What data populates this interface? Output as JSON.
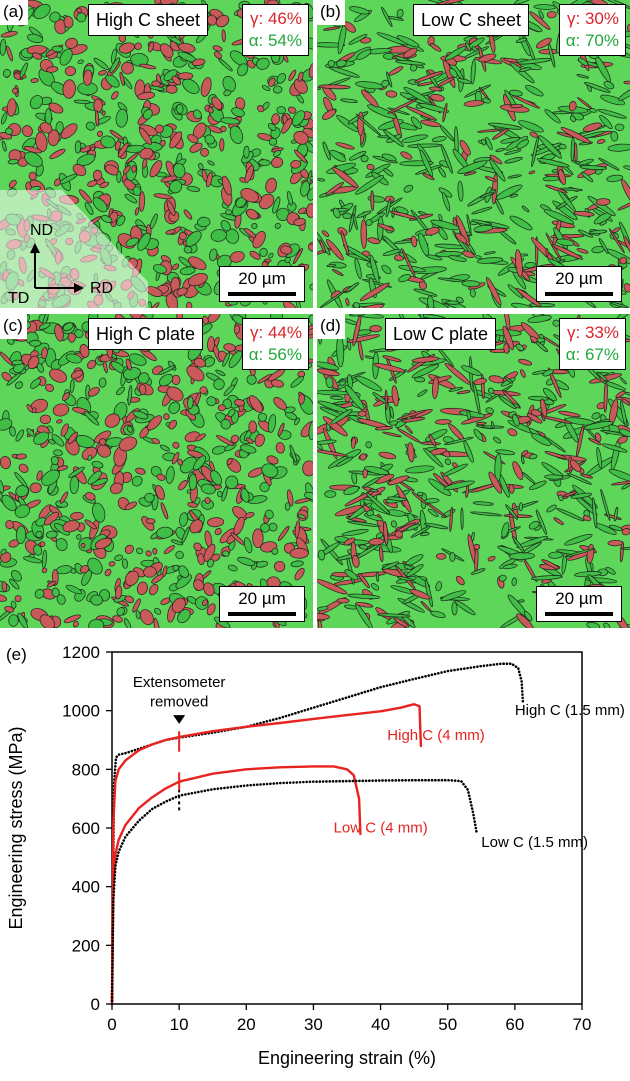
{
  "panels": [
    {
      "letter": "(a)",
      "sample": "High C sheet",
      "gamma": "γ: 46%",
      "alpha": "α: 54%",
      "scale": "20 µm",
      "gamma_frac": 0.46
    },
    {
      "letter": "(b)",
      "sample": "Low C sheet",
      "gamma": "γ: 30%",
      "alpha": "α: 70%",
      "scale": "20 µm",
      "gamma_frac": 0.3
    },
    {
      "letter": "(c)",
      "sample": "High C plate",
      "gamma": "γ: 44%",
      "alpha": "α: 56%",
      "scale": "20 µm",
      "gamma_frac": 0.44
    },
    {
      "letter": "(d)",
      "sample": "Low C plate",
      "gamma": "γ: 33%",
      "alpha": "α: 67%",
      "scale": "20 µm",
      "gamma_frac": 0.33
    }
  ],
  "axes_overlay": {
    "nd": "ND",
    "td": "TD",
    "rd": "RD"
  },
  "colors": {
    "austenite": "#d9262e",
    "ferrite": "#22a83c",
    "green_phase_fill": "#5ed65a",
    "red_phase_fill": "#c95a5a"
  },
  "chart_data": {
    "type": "line",
    "panel_letter": "(e)",
    "xlabel": "Engineering strain (%)",
    "ylabel": "Engineering stress (MPa)",
    "xlim": [
      0,
      70
    ],
    "ylim": [
      0,
      1200
    ],
    "xticks": [
      0,
      10,
      20,
      30,
      40,
      50,
      60,
      70
    ],
    "yticks": [
      0,
      200,
      400,
      600,
      800,
      1000,
      1200
    ],
    "annotation": {
      "text_line1": "Extensometer",
      "text_line2": "removed",
      "at_strain": 10
    },
    "series": [
      {
        "name": "High C (1.5 mm)",
        "color": "#000000",
        "style": "dotted",
        "x": [
          0,
          0.3,
          0.6,
          1.0,
          2,
          4,
          6,
          8,
          10,
          15,
          20,
          25,
          30,
          35,
          40,
          45,
          50,
          55,
          58,
          59.5,
          60.5,
          61.0,
          61.2
        ],
        "y": [
          0,
          750,
          840,
          850,
          855,
          870,
          885,
          900,
          908,
          925,
          945,
          975,
          1010,
          1045,
          1080,
          1108,
          1135,
          1152,
          1160,
          1160,
          1145,
          1100,
          1030
        ]
      },
      {
        "name": "High C (4 mm)",
        "color": "#e8231f",
        "style": "solid",
        "x": [
          0,
          0.2,
          0.5,
          1.0,
          2,
          4,
          6,
          8,
          10,
          15,
          20,
          25,
          30,
          35,
          40,
          43,
          45,
          45.8,
          46.0
        ],
        "y": [
          0,
          620,
          760,
          800,
          830,
          865,
          885,
          900,
          910,
          930,
          945,
          958,
          972,
          985,
          998,
          1010,
          1022,
          1015,
          880
        ]
      },
      {
        "name": "Low C (4 mm)",
        "color": "#e8231f",
        "style": "solid",
        "x": [
          0,
          0.2,
          0.5,
          1.0,
          2,
          4,
          6,
          8,
          10,
          15,
          20,
          25,
          30,
          33,
          35,
          36,
          36.8,
          37.0
        ],
        "y": [
          0,
          400,
          510,
          560,
          610,
          668,
          705,
          735,
          758,
          785,
          800,
          807,
          810,
          810,
          800,
          780,
          700,
          580
        ]
      },
      {
        "name": "Low C (1.5 mm)",
        "color": "#000000",
        "style": "dotted",
        "x": [
          0,
          0.2,
          0.5,
          1.0,
          2,
          4,
          6,
          8,
          10,
          15,
          20,
          25,
          30,
          35,
          40,
          45,
          50,
          52,
          53,
          53.8,
          54.3
        ],
        "y": [
          0,
          350,
          470,
          520,
          570,
          625,
          665,
          690,
          710,
          732,
          745,
          753,
          758,
          760,
          762,
          763,
          763,
          760,
          730,
          650,
          585
        ]
      }
    ],
    "labels": [
      {
        "text": "High C (1.5 mm)",
        "color": "#000000",
        "x": 60,
        "y": 985
      },
      {
        "text": "High C (4 mm)",
        "color": "#e8231f",
        "x": 41,
        "y": 900
      },
      {
        "text": "Low C (4 mm)",
        "color": "#e8231f",
        "x": 33,
        "y": 585
      },
      {
        "text": "Low C (1.5 mm)",
        "color": "#000000",
        "x": 55,
        "y": 535
      }
    ]
  }
}
